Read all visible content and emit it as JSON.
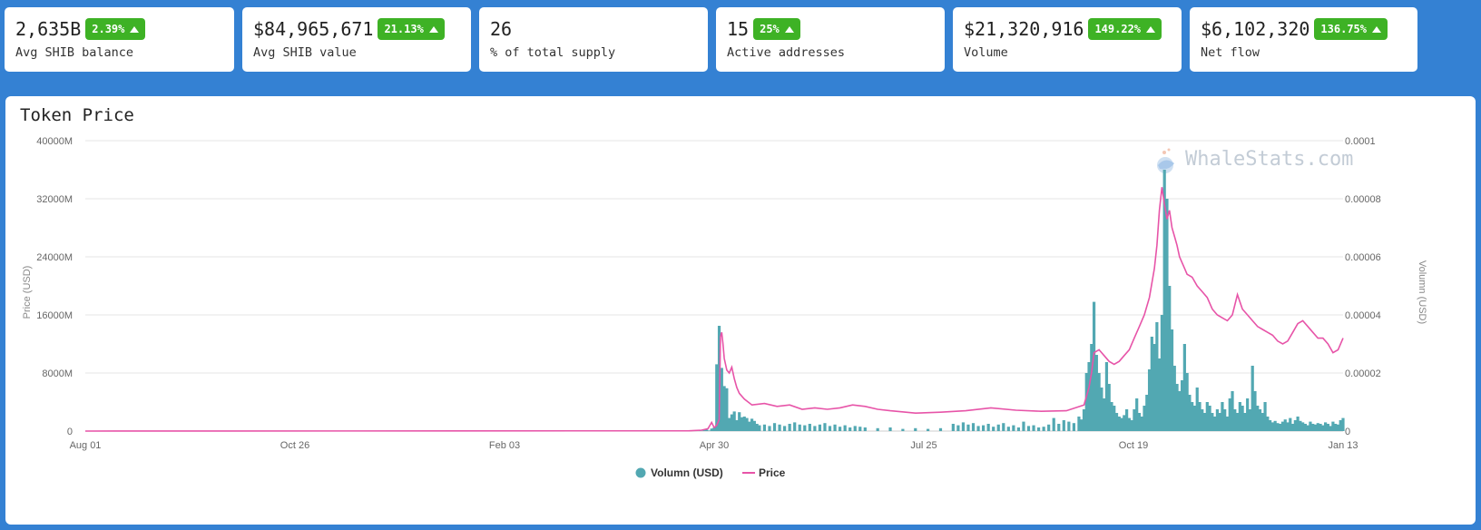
{
  "cards": [
    {
      "value": "2,635B",
      "badge": "2.39%",
      "label": "Avg SHIB balance"
    },
    {
      "value": "$84,965,671",
      "badge": "21.13%",
      "label": "Avg SHIB value"
    },
    {
      "value": "26",
      "badge": "",
      "label": "% of total supply"
    },
    {
      "value": "15",
      "badge": "25%",
      "label": "Active addresses"
    },
    {
      "value": "$21,320,916",
      "badge": "149.22%",
      "label": "Volume"
    },
    {
      "value": "$6,102,320",
      "badge": "136.75%",
      "label": "Net flow"
    }
  ],
  "panel": {
    "title": "Token Price",
    "watermark": "WhaleStats.com"
  },
  "chart_data": {
    "type": "bar",
    "title": "",
    "xlabel": "",
    "ylabel": "Price (USD)",
    "y2label": "Volumn (USD)",
    "x_tick_labels": [
      "Aug 01",
      "Oct 26",
      "Feb 03",
      "Apr 30",
      "Jul 25",
      "Oct 19",
      "Jan 13"
    ],
    "y_left_ticks": [
      "0",
      "8000M",
      "16000M",
      "24000M",
      "32000M",
      "40000M"
    ],
    "y_right_ticks": [
      "0",
      "0.00002",
      "0.00004",
      "0.00006",
      "0.00008",
      "0.0001"
    ],
    "ylim_left": [
      0,
      40000
    ],
    "ylim_left_unit": "M",
    "ylim_right": [
      0,
      0.0001
    ],
    "grid": true,
    "legend_position": "bottom",
    "series": [
      {
        "name": "Volumn (USD)",
        "color": "#52a8b2",
        "type": "bar",
        "axis": "left",
        "x": [
          0.743,
          0.747,
          0.75,
          0.753,
          0.757,
          0.76,
          0.763,
          0.767,
          0.77,
          0.773,
          0.777,
          0.78,
          0.783,
          0.787,
          0.79,
          0.793,
          0.797,
          0.8,
          0.803,
          0.807,
          0.81,
          0.813,
          0.817,
          0.82,
          0.823,
          0.827,
          0.83,
          0.833,
          0.837,
          0.84,
          0.843,
          0.847,
          0.85,
          0.853,
          0.857,
          0.86,
          0.863,
          0.867,
          0.87,
          0.873,
          0.877,
          0.88,
          0.883,
          0.887,
          0.89,
          0.893,
          0.897,
          0.9,
          0.903,
          0.907,
          0.91,
          0.913,
          0.917,
          0.92,
          0.923,
          0.927,
          0.93,
          0.933,
          0.937,
          0.94,
          0.943,
          0.947,
          0.95,
          0.953,
          0.957,
          0.96,
          0.963,
          0.967,
          0.97,
          0.973,
          0.977,
          0.98,
          0.983,
          0.987,
          0.99,
          0.993,
          0.997,
          1.0
        ],
        "values": [
          0,
          0,
          0,
          0,
          0,
          0,
          0,
          0,
          0,
          0,
          0,
          0,
          0,
          0,
          0,
          0,
          0,
          0,
          0,
          0,
          0,
          0,
          0,
          0,
          0,
          0,
          0,
          0,
          0,
          0,
          0,
          0,
          0,
          0,
          0,
          0,
          0,
          0,
          0,
          0,
          0,
          0,
          0,
          0,
          0,
          0,
          0,
          0,
          0,
          0,
          0,
          0,
          0,
          0,
          0,
          0,
          0,
          0,
          0,
          0,
          0,
          0,
          0,
          0,
          0,
          0,
          0,
          0,
          0,
          0,
          0,
          0,
          0,
          0,
          0,
          0,
          0,
          0
        ]
      },
      {
        "name": "Price",
        "color": "#e754a8",
        "type": "line",
        "axis": "right"
      }
    ],
    "volume_points": [
      [
        0.0,
        0
      ],
      [
        0.48,
        0
      ],
      [
        0.485,
        30
      ],
      [
        0.489,
        60
      ],
      [
        0.492,
        120
      ],
      [
        0.494,
        200
      ],
      [
        0.496,
        80
      ],
      [
        0.498,
        350
      ],
      [
        0.5,
        500
      ],
      [
        0.502,
        9200
      ],
      [
        0.504,
        14500
      ],
      [
        0.506,
        8700
      ],
      [
        0.508,
        6200
      ],
      [
        0.51,
        5900
      ],
      [
        0.512,
        1800
      ],
      [
        0.514,
        2300
      ],
      [
        0.516,
        2700
      ],
      [
        0.518,
        1500
      ],
      [
        0.52,
        2600
      ],
      [
        0.522,
        1900
      ],
      [
        0.524,
        2000
      ],
      [
        0.526,
        1800
      ],
      [
        0.528,
        1300
      ],
      [
        0.53,
        1700
      ],
      [
        0.532,
        1400
      ],
      [
        0.534,
        1000
      ],
      [
        0.536,
        800
      ],
      [
        0.54,
        900
      ],
      [
        0.544,
        700
      ],
      [
        0.548,
        1100
      ],
      [
        0.552,
        900
      ],
      [
        0.556,
        700
      ],
      [
        0.56,
        1000
      ],
      [
        0.564,
        1200
      ],
      [
        0.568,
        900
      ],
      [
        0.572,
        800
      ],
      [
        0.576,
        1000
      ],
      [
        0.58,
        700
      ],
      [
        0.584,
        900
      ],
      [
        0.588,
        1100
      ],
      [
        0.592,
        700
      ],
      [
        0.596,
        900
      ],
      [
        0.6,
        600
      ],
      [
        0.604,
        800
      ],
      [
        0.608,
        500
      ],
      [
        0.612,
        700
      ],
      [
        0.616,
        600
      ],
      [
        0.62,
        500
      ],
      [
        0.63,
        400
      ],
      [
        0.64,
        500
      ],
      [
        0.65,
        300
      ],
      [
        0.66,
        400
      ],
      [
        0.67,
        300
      ],
      [
        0.68,
        400
      ],
      [
        0.69,
        1000
      ],
      [
        0.694,
        800
      ],
      [
        0.698,
        1200
      ],
      [
        0.702,
        900
      ],
      [
        0.706,
        1100
      ],
      [
        0.71,
        700
      ],
      [
        0.714,
        800
      ],
      [
        0.718,
        1000
      ],
      [
        0.722,
        600
      ],
      [
        0.726,
        900
      ],
      [
        0.73,
        1100
      ],
      [
        0.734,
        600
      ],
      [
        0.738,
        800
      ],
      [
        0.742,
        500
      ],
      [
        0.746,
        1300
      ],
      [
        0.75,
        700
      ],
      [
        0.754,
        800
      ],
      [
        0.758,
        500
      ],
      [
        0.762,
        600
      ],
      [
        0.766,
        900
      ],
      [
        0.77,
        1800
      ],
      [
        0.774,
        1000
      ],
      [
        0.778,
        1500
      ],
      [
        0.782,
        1300
      ],
      [
        0.786,
        1100
      ],
      [
        0.79,
        2000
      ],
      [
        0.792,
        1600
      ],
      [
        0.794,
        3000
      ],
      [
        0.796,
        8000
      ],
      [
        0.798,
        9500
      ],
      [
        0.8,
        12000
      ],
      [
        0.802,
        17800
      ],
      [
        0.804,
        10500
      ],
      [
        0.806,
        8000
      ],
      [
        0.808,
        6000
      ],
      [
        0.81,
        4500
      ],
      [
        0.812,
        9500
      ],
      [
        0.814,
        6500
      ],
      [
        0.816,
        4000
      ],
      [
        0.818,
        3500
      ],
      [
        0.82,
        2500
      ],
      [
        0.822,
        2000
      ],
      [
        0.824,
        1800
      ],
      [
        0.826,
        2200
      ],
      [
        0.828,
        3000
      ],
      [
        0.83,
        1800
      ],
      [
        0.832,
        1500
      ],
      [
        0.834,
        3000
      ],
      [
        0.836,
        4500
      ],
      [
        0.838,
        2500
      ],
      [
        0.84,
        2000
      ],
      [
        0.842,
        3500
      ],
      [
        0.844,
        5000
      ],
      [
        0.846,
        8500
      ],
      [
        0.848,
        13000
      ],
      [
        0.85,
        12000
      ],
      [
        0.852,
        15000
      ],
      [
        0.854,
        10000
      ],
      [
        0.856,
        16000
      ],
      [
        0.858,
        36000
      ],
      [
        0.86,
        32000
      ],
      [
        0.862,
        20000
      ],
      [
        0.864,
        14000
      ],
      [
        0.866,
        9000
      ],
      [
        0.868,
        6500
      ],
      [
        0.87,
        5500
      ],
      [
        0.872,
        7000
      ],
      [
        0.874,
        12000
      ],
      [
        0.876,
        8000
      ],
      [
        0.878,
        5000
      ],
      [
        0.88,
        4000
      ],
      [
        0.882,
        3500
      ],
      [
        0.884,
        6000
      ],
      [
        0.886,
        4000
      ],
      [
        0.888,
        3000
      ],
      [
        0.89,
        2500
      ],
      [
        0.892,
        4000
      ],
      [
        0.894,
        3500
      ],
      [
        0.896,
        2500
      ],
      [
        0.898,
        2000
      ],
      [
        0.9,
        3000
      ],
      [
        0.902,
        2500
      ],
      [
        0.904,
        4000
      ],
      [
        0.906,
        3000
      ],
      [
        0.908,
        2000
      ],
      [
        0.91,
        4500
      ],
      [
        0.912,
        5500
      ],
      [
        0.914,
        3000
      ],
      [
        0.916,
        2500
      ],
      [
        0.918,
        4000
      ],
      [
        0.92,
        3500
      ],
      [
        0.922,
        2500
      ],
      [
        0.924,
        4500
      ],
      [
        0.926,
        3000
      ],
      [
        0.928,
        9000
      ],
      [
        0.93,
        5500
      ],
      [
        0.932,
        3500
      ],
      [
        0.934,
        3000
      ],
      [
        0.936,
        2500
      ],
      [
        0.938,
        4000
      ],
      [
        0.94,
        2000
      ],
      [
        0.942,
        1500
      ],
      [
        0.944,
        1200
      ],
      [
        0.946,
        1400
      ],
      [
        0.948,
        1100
      ],
      [
        0.95,
        1000
      ],
      [
        0.952,
        1300
      ],
      [
        0.954,
        1600
      ],
      [
        0.956,
        1200
      ],
      [
        0.958,
        1800
      ],
      [
        0.96,
        1000
      ],
      [
        0.962,
        1500
      ],
      [
        0.964,
        2000
      ],
      [
        0.966,
        1400
      ],
      [
        0.968,
        1200
      ],
      [
        0.97,
        1000
      ],
      [
        0.972,
        800
      ],
      [
        0.974,
        1300
      ],
      [
        0.976,
        1000
      ],
      [
        0.978,
        900
      ],
      [
        0.98,
        1100
      ],
      [
        0.982,
        1000
      ],
      [
        0.984,
        800
      ],
      [
        0.986,
        1200
      ],
      [
        0.988,
        1000
      ],
      [
        0.99,
        700
      ],
      [
        0.992,
        1300
      ],
      [
        0.994,
        1000
      ],
      [
        0.996,
        900
      ],
      [
        0.998,
        1500
      ],
      [
        1.0,
        1800
      ]
    ],
    "price_points": [
      [
        0.0,
        0
      ],
      [
        0.48,
        1e-07
      ],
      [
        0.49,
        3e-07
      ],
      [
        0.495,
        8e-07
      ],
      [
        0.498,
        3e-06
      ],
      [
        0.5,
        1.2e-06
      ],
      [
        0.502,
        2e-06
      ],
      [
        0.504,
        4e-06
      ],
      [
        0.505,
        3.25e-05
      ],
      [
        0.506,
        3.4e-05
      ],
      [
        0.507,
        3e-05
      ],
      [
        0.508,
        2.5e-05
      ],
      [
        0.51,
        2.1e-05
      ],
      [
        0.512,
        2e-05
      ],
      [
        0.514,
        2.2e-05
      ],
      [
        0.516,
        1.8e-05
      ],
      [
        0.518,
        1.5e-05
      ],
      [
        0.52,
        1.3e-05
      ],
      [
        0.524,
        1.1e-05
      ],
      [
        0.53,
        9e-06
      ],
      [
        0.54,
        9.5e-06
      ],
      [
        0.55,
        8.5e-06
      ],
      [
        0.56,
        9e-06
      ],
      [
        0.57,
        7.5e-06
      ],
      [
        0.58,
        8e-06
      ],
      [
        0.59,
        7.5e-06
      ],
      [
        0.6,
        8e-06
      ],
      [
        0.61,
        9e-06
      ],
      [
        0.62,
        8.5e-06
      ],
      [
        0.63,
        7.5e-06
      ],
      [
        0.64,
        7e-06
      ],
      [
        0.66,
        6.2e-06
      ],
      [
        0.68,
        6.5e-06
      ],
      [
        0.7,
        7e-06
      ],
      [
        0.72,
        8e-06
      ],
      [
        0.74,
        7.2e-06
      ],
      [
        0.76,
        6.8e-06
      ],
      [
        0.78,
        7e-06
      ],
      [
        0.794,
        9e-06
      ],
      [
        0.798,
        1.5e-05
      ],
      [
        0.8,
        2e-05
      ],
      [
        0.802,
        2.7e-05
      ],
      [
        0.806,
        2.8e-05
      ],
      [
        0.81,
        2.6e-05
      ],
      [
        0.814,
        2.4e-05
      ],
      [
        0.818,
        2.3e-05
      ],
      [
        0.822,
        2.4e-05
      ],
      [
        0.826,
        2.6e-05
      ],
      [
        0.83,
        2.8e-05
      ],
      [
        0.834,
        3.2e-05
      ],
      [
        0.838,
        3.6e-05
      ],
      [
        0.842,
        4e-05
      ],
      [
        0.846,
        4.6e-05
      ],
      [
        0.85,
        5.6e-05
      ],
      [
        0.852,
        6.4e-05
      ],
      [
        0.854,
        7.6e-05
      ],
      [
        0.856,
        8.4e-05
      ],
      [
        0.858,
        7.8e-05
      ],
      [
        0.86,
        7.3e-05
      ],
      [
        0.862,
        7.6e-05
      ],
      [
        0.864,
        7e-05
      ],
      [
        0.866,
        6.7e-05
      ],
      [
        0.868,
        6.4e-05
      ],
      [
        0.87,
        6e-05
      ],
      [
        0.872,
        5.8e-05
      ],
      [
        0.874,
        5.6e-05
      ],
      [
        0.876,
        5.4e-05
      ],
      [
        0.88,
        5.3e-05
      ],
      [
        0.884,
        5e-05
      ],
      [
        0.888,
        4.8e-05
      ],
      [
        0.892,
        4.6e-05
      ],
      [
        0.896,
        4.2e-05
      ],
      [
        0.9,
        4e-05
      ],
      [
        0.904,
        3.9e-05
      ],
      [
        0.908,
        3.8e-05
      ],
      [
        0.912,
        4e-05
      ],
      [
        0.916,
        4.7e-05
      ],
      [
        0.92,
        4.2e-05
      ],
      [
        0.924,
        4e-05
      ],
      [
        0.928,
        3.8e-05
      ],
      [
        0.932,
        3.6e-05
      ],
      [
        0.936,
        3.5e-05
      ],
      [
        0.94,
        3.4e-05
      ],
      [
        0.944,
        3.3e-05
      ],
      [
        0.948,
        3.1e-05
      ],
      [
        0.952,
        3e-05
      ],
      [
        0.956,
        3.1e-05
      ],
      [
        0.96,
        3.4e-05
      ],
      [
        0.964,
        3.7e-05
      ],
      [
        0.968,
        3.8e-05
      ],
      [
        0.972,
        3.6e-05
      ],
      [
        0.976,
        3.4e-05
      ],
      [
        0.98,
        3.2e-05
      ],
      [
        0.984,
        3.2e-05
      ],
      [
        0.988,
        3e-05
      ],
      [
        0.992,
        2.7e-05
      ],
      [
        0.996,
        2.8e-05
      ],
      [
        1.0,
        3.2e-05
      ]
    ]
  },
  "colors": {
    "page_bg": "#3481d3",
    "badge_green": "#3eb225",
    "volume": "#52a8b2",
    "price": "#e754a8"
  }
}
